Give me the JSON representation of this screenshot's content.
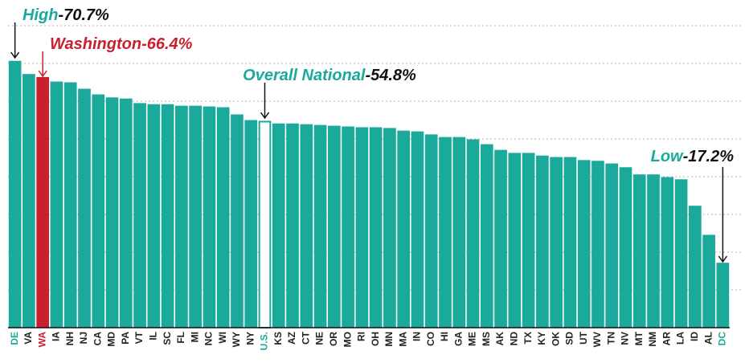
{
  "chart_data": {
    "type": "bar",
    "categories": [
      "DE",
      "VA",
      "WA",
      "IA",
      "NH",
      "NJ",
      "CA",
      "MD",
      "PA",
      "VT",
      "IL",
      "SC",
      "FL",
      "MI",
      "NC",
      "WI",
      "WY",
      "NY",
      "U.S.",
      "KS",
      "AZ",
      "CT",
      "NE",
      "OR",
      "MO",
      "RI",
      "OH",
      "MN",
      "MA",
      "IN",
      "CO",
      "HI",
      "GA",
      "ME",
      "MS",
      "AK",
      "ND",
      "TX",
      "KY",
      "OK",
      "SD",
      "UT",
      "WV",
      "TN",
      "NV",
      "MT",
      "NM",
      "AR",
      "LA",
      "ID",
      "AL",
      "DC"
    ],
    "values": [
      70.7,
      67.2,
      66.4,
      65.2,
      65.0,
      63.3,
      61.8,
      61.0,
      60.7,
      59.5,
      59.2,
      59.2,
      58.8,
      58.8,
      58.6,
      58.4,
      56.5,
      55.0,
      54.8,
      54.1,
      54.1,
      53.9,
      53.7,
      53.5,
      53.3,
      53.1,
      53.1,
      52.9,
      52.2,
      52.0,
      51.2,
      50.5,
      50.5,
      49.9,
      48.6,
      47.1,
      46.3,
      46.3,
      45.6,
      45.2,
      45.2,
      44.4,
      44.2,
      43.5,
      42.5,
      40.6,
      40.6,
      39.9,
      39.3,
      32.3,
      24.6,
      17.2
    ],
    "color": "#1aa99a",
    "highlight": {
      "category": "WA",
      "color": "#c8202f"
    },
    "outline": {
      "category": "U.S.",
      "color": "#1aa99a"
    },
    "ylim": [
      0,
      80
    ],
    "yticks": [
      10,
      20,
      30,
      40,
      50,
      60,
      70,
      80
    ],
    "grid": true,
    "annotations": [
      {
        "category": "DE",
        "text": "High",
        "value_text": "-70.7%",
        "color": "#1aa99a"
      },
      {
        "category": "WA",
        "text": "Washington-66.4%",
        "color": "#c8202f"
      },
      {
        "category": "U.S.",
        "text": "Overall National",
        "value_text": "-54.8%",
        "color": "#1aa99a"
      },
      {
        "category": "DC",
        "text": "Low",
        "value_text": "-17.2%",
        "color": "#1aa99a"
      }
    ]
  }
}
